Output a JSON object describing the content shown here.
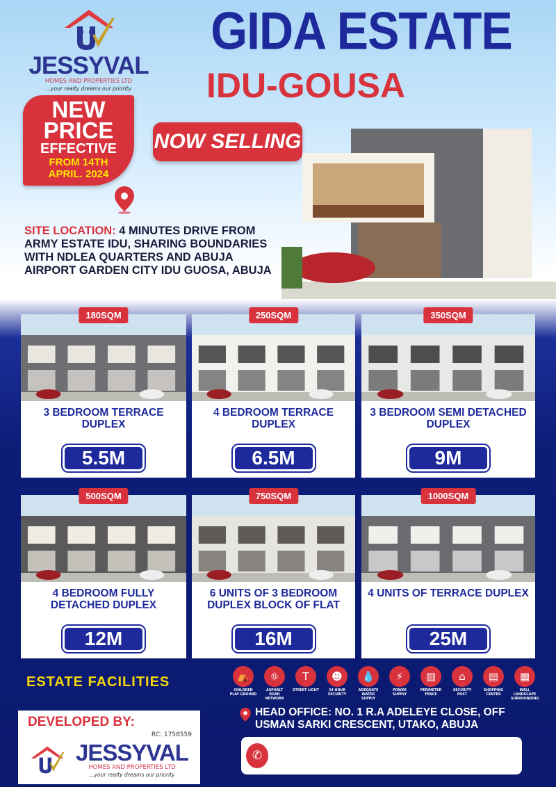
{
  "brand": {
    "name": "JESSYVAL",
    "subtitle": "HOMES AND PROPERTIES LTD",
    "tagline": "...your realty dreams our priority",
    "rc": "RC: 1758559"
  },
  "promo": {
    "line1": "NEW",
    "line2": "PRICE",
    "line3": "EFFECTIVE",
    "line4": "FROM 14TH",
    "line5": "APRIL. 2024"
  },
  "header": {
    "title": "GIDA ESTATE",
    "subtitle": "IDU-GOUSA",
    "now_selling": "NOW SELLING"
  },
  "site": {
    "label": "SITE LOCATION:",
    "text": " 4 MINUTES DRIVE FROM ARMY ESTATE IDU, SHARING BOUNDARIES WITH NDLEA QUARTERS AND ABUJA AIRPORT GARDEN CITY IDU GUOSA, ABUJA"
  },
  "listings": [
    {
      "size": "180SQM",
      "title": "3 BEDROOM TERRACE DUPLEX",
      "price": "5.5M"
    },
    {
      "size": "250SQM",
      "title": "4 BEDROOM TERRACE DUPLEX",
      "price": "6.5M"
    },
    {
      "size": "350SQM",
      "title": "3 BEDROOM SEMI DETACHED DUPLEX",
      "price": "9M"
    },
    {
      "size": "500SQM",
      "title": "4 BEDROOM FULLY DETACHED DUPLEX",
      "price": "12M"
    },
    {
      "size": "750SQM",
      "title": "6 UNITS OF 3 BEDROOM DUPLEX BLOCK OF FLAT",
      "price": "16M"
    },
    {
      "size": "1000SQM",
      "title": "4 UNITS OF TERRACE DUPLEX",
      "price": "25M"
    }
  ],
  "facilities": {
    "heading": "ESTATE FACILITIES",
    "items": [
      {
        "label": "CHILDREN PLAY GROUND",
        "icon": "playground-icon"
      },
      {
        "label": "ASPHALT ROAD NETWORK",
        "icon": "road-icon"
      },
      {
        "label": "STREET LIGHT",
        "icon": "street-light-icon"
      },
      {
        "label": "24 HOUR SECURITY",
        "icon": "guard-icon"
      },
      {
        "label": "ADEQUATE WATER SUPPLY",
        "icon": "water-drop-icon"
      },
      {
        "label": "POWER SUPPLY",
        "icon": "bulb-icon"
      },
      {
        "label": "PERIMETER FENCE",
        "icon": "fence-icon"
      },
      {
        "label": "SECURITY POST",
        "icon": "security-post-icon"
      },
      {
        "label": "SHOPPING CENTER",
        "icon": "shop-icon"
      },
      {
        "label": "WELL LANDSCAPE SURROUNDING",
        "icon": "landscape-icon"
      }
    ]
  },
  "office": {
    "line1": "HEAD OFFICE: NO. 1  R.A  ADELEYE CLOSE, OFF",
    "line2": "USMAN SARKI CRESCENT, UTAKO, ABUJA"
  },
  "developer": {
    "label": "DEVELOPED BY:"
  },
  "colors": {
    "navy": "#0c1d78",
    "red": "#d8323d",
    "yellow": "#f5d60a",
    "blue": "#1e2a9c"
  }
}
